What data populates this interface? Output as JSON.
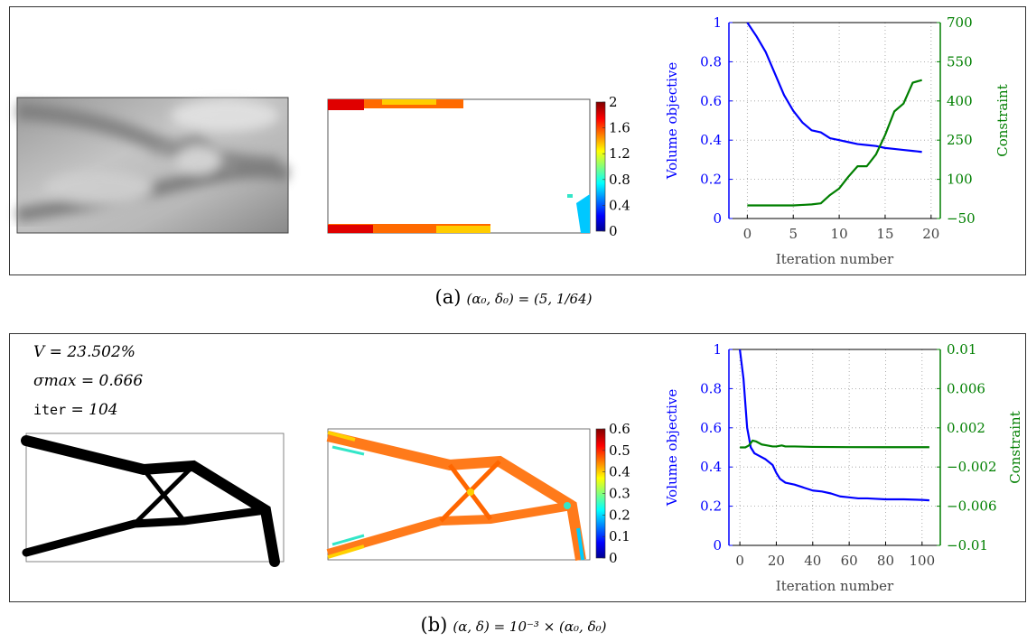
{
  "captions": {
    "a_label": "(a)",
    "a_math": "(α₀, δ₀) = (5, 1/64)",
    "b_label": "(b)",
    "b_math": "(α, δ) = 10⁻³ × (α₀, δ₀)"
  },
  "panel_b_stats": {
    "volume": "V = 23.502%",
    "sigma": "σmax = 0.666",
    "iter_kw": "iter",
    "iter_val": "= 104"
  },
  "colorbars": {
    "a_ticks": [
      "2",
      "1.6",
      "1.2",
      "0.8",
      "0.4",
      "0"
    ],
    "b_ticks": [
      "0.6",
      "0.5",
      "0.4",
      "0.3",
      "0.2",
      "0.1",
      "0"
    ]
  },
  "colors": {
    "volume_line": "#0000ff",
    "constraint_line": "#007f00",
    "grid": "#999999"
  },
  "chart_data": [
    {
      "type": "line",
      "xlabel": "Iteration number",
      "ylabel": "Volume objective",
      "y2label": "Constraint",
      "xlim": [
        -2,
        21
      ],
      "ylim": [
        0,
        1
      ],
      "y2lim": [
        -50,
        700
      ],
      "xticks": [
        "0",
        "5",
        "10",
        "15",
        "20"
      ],
      "xtick_values": [
        0,
        5,
        10,
        15,
        20
      ],
      "yticks": [
        "0",
        "0.2",
        "0.4",
        "0.6",
        "0.8",
        "1"
      ],
      "ytick_values": [
        0,
        0.2,
        0.4,
        0.6,
        0.8,
        1
      ],
      "y2ticks": [
        "−50",
        "100",
        "250",
        "400",
        "550",
        "700"
      ],
      "y2tick_values": [
        -50,
        100,
        250,
        400,
        550,
        700
      ],
      "grid": true,
      "series": [
        {
          "axis": "left",
          "x": [
            0,
            1,
            2,
            3,
            4,
            5,
            6,
            7,
            8,
            9,
            10,
            11,
            12,
            13,
            14,
            15,
            16,
            17,
            18,
            19
          ],
          "values": [
            1.0,
            0.93,
            0.85,
            0.74,
            0.63,
            0.55,
            0.49,
            0.45,
            0.44,
            0.41,
            0.4,
            0.39,
            0.38,
            0.375,
            0.37,
            0.36,
            0.355,
            0.35,
            0.345,
            0.34
          ]
        },
        {
          "axis": "right",
          "x": [
            0,
            1,
            2,
            3,
            4,
            5,
            6,
            7,
            8,
            9,
            10,
            11,
            12,
            13,
            14,
            15,
            16,
            17,
            18,
            19
          ],
          "values": [
            0,
            0,
            0,
            0,
            0,
            0,
            2,
            4,
            8,
            40,
            65,
            110,
            150,
            150,
            195,
            270,
            360,
            390,
            470,
            480
          ]
        }
      ]
    },
    {
      "type": "line",
      "xlabel": "Iteration number",
      "ylabel": "Volume objective",
      "y2label": "Constraint",
      "xlim": [
        -6,
        110
      ],
      "ylim": [
        0,
        1
      ],
      "y2lim": [
        -0.01,
        0.01
      ],
      "xticks": [
        "0",
        "20",
        "40",
        "60",
        "80",
        "100"
      ],
      "xtick_values": [
        0,
        20,
        40,
        60,
        80,
        100
      ],
      "yticks": [
        "0",
        "0.2",
        "0.4",
        "0.6",
        "0.8",
        "1"
      ],
      "ytick_values": [
        0,
        0.2,
        0.4,
        0.6,
        0.8,
        1
      ],
      "y2ticks": [
        "−0.01",
        "−0.006",
        "−0.002",
        "0.002",
        "0.006",
        "0.01"
      ],
      "y2tick_values": [
        -0.01,
        -0.006,
        -0.002,
        0.002,
        0.006,
        0.01
      ],
      "grid": true,
      "series": [
        {
          "axis": "left",
          "x": [
            0,
            2,
            4,
            6,
            8,
            10,
            14,
            18,
            20,
            22,
            25,
            30,
            35,
            40,
            45,
            50,
            55,
            60,
            65,
            70,
            80,
            90,
            100,
            104
          ],
          "values": [
            1.0,
            0.85,
            0.6,
            0.5,
            0.47,
            0.46,
            0.44,
            0.41,
            0.37,
            0.34,
            0.32,
            0.31,
            0.295,
            0.28,
            0.275,
            0.265,
            0.25,
            0.245,
            0.24,
            0.24,
            0.235,
            0.235,
            0.232,
            0.23
          ]
        },
        {
          "axis": "right",
          "x": [
            0,
            3,
            5,
            7,
            9,
            12,
            15,
            18,
            20,
            23,
            25,
            30,
            40,
            60,
            80,
            100,
            104
          ],
          "values": [
            0,
            0,
            0.0002,
            0.0007,
            0.0006,
            0.0003,
            0.0002,
            0.0001,
            0.0001,
            0.0002,
            0.0001,
            0.0001,
            5e-05,
            3e-05,
            2e-05,
            2e-05,
            2e-05
          ]
        }
      ]
    }
  ]
}
